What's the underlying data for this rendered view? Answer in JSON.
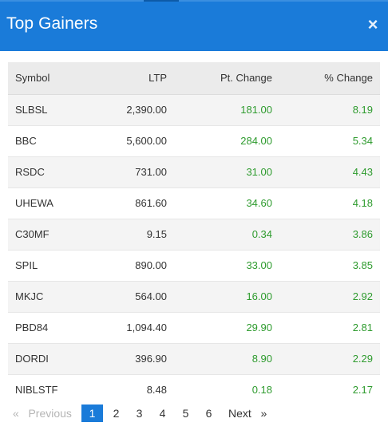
{
  "header": {
    "title": "Top Gainers",
    "close_label": "×"
  },
  "table": {
    "columns": [
      "Symbol",
      "LTP",
      "Pt. Change",
      "% Change"
    ],
    "rows": [
      {
        "symbol": "SLBSL",
        "ltp": "2,390.00",
        "pt_change": "181.00",
        "pct_change": "8.19"
      },
      {
        "symbol": "BBC",
        "ltp": "5,600.00",
        "pt_change": "284.00",
        "pct_change": "5.34"
      },
      {
        "symbol": "RSDC",
        "ltp": "731.00",
        "pt_change": "31.00",
        "pct_change": "4.43"
      },
      {
        "symbol": "UHEWA",
        "ltp": "861.60",
        "pt_change": "34.60",
        "pct_change": "4.18"
      },
      {
        "symbol": "C30MF",
        "ltp": "9.15",
        "pt_change": "0.34",
        "pct_change": "3.86"
      },
      {
        "symbol": "SPIL",
        "ltp": "890.00",
        "pt_change": "33.00",
        "pct_change": "3.85"
      },
      {
        "symbol": "MKJC",
        "ltp": "564.00",
        "pt_change": "16.00",
        "pct_change": "2.92"
      },
      {
        "symbol": "PBD84",
        "ltp": "1,094.40",
        "pt_change": "29.90",
        "pct_change": "2.81"
      },
      {
        "symbol": "DORDI",
        "ltp": "396.90",
        "pt_change": "8.90",
        "pct_change": "2.29"
      },
      {
        "symbol": "NIBLSTF",
        "ltp": "8.48",
        "pt_change": "0.18",
        "pct_change": "2.17"
      }
    ]
  },
  "pagination": {
    "prev_label": "«   Previous",
    "next_label": "Next   »",
    "pages": [
      "1",
      "2",
      "3",
      "4",
      "5",
      "6"
    ],
    "current_page": "1"
  },
  "colors": {
    "header_bg": "#1a7bd9",
    "positive": "#2e9b2e",
    "active_page": "#1a7bd9"
  }
}
